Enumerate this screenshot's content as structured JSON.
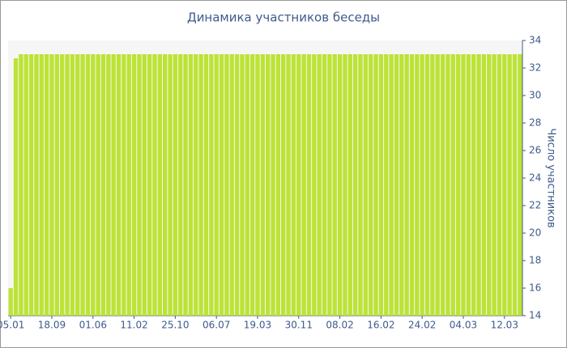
{
  "chart_data": {
    "type": "bar",
    "title": "Динамика участников беседы",
    "y_label": "Число участников",
    "categories": [
      "05.01",
      null,
      null,
      null,
      null,
      null,
      null,
      null,
      "18.09",
      null,
      null,
      null,
      null,
      null,
      null,
      null,
      "01.06",
      null,
      null,
      null,
      null,
      null,
      null,
      null,
      "11.02",
      null,
      null,
      null,
      null,
      null,
      null,
      null,
      "25.10",
      null,
      null,
      null,
      null,
      null,
      null,
      null,
      "06.07",
      null,
      null,
      null,
      null,
      null,
      null,
      null,
      "19.03",
      null,
      null,
      null,
      null,
      null,
      null,
      null,
      "30.11",
      null,
      null,
      null,
      null,
      null,
      null,
      null,
      "08.02",
      null,
      null,
      null,
      null,
      null,
      null,
      null,
      "16.02",
      null,
      null,
      null,
      null,
      null,
      null,
      null,
      "24.02",
      null,
      null,
      null,
      null,
      null,
      null,
      null,
      "04.03",
      null,
      null,
      null,
      null,
      null,
      null,
      null,
      "12.03",
      null,
      null,
      null
    ],
    "values": [
      16,
      32.7,
      33,
      33,
      33,
      33,
      33,
      33,
      33,
      33,
      33,
      33,
      33,
      33,
      33,
      33,
      33,
      33,
      33,
      33,
      33,
      33,
      33,
      33,
      33,
      33,
      33,
      33,
      33,
      33,
      33,
      33,
      33,
      33,
      33,
      33,
      33,
      33,
      33,
      33,
      33,
      33,
      33,
      33,
      33,
      33,
      33,
      33,
      33,
      33,
      33,
      33,
      33,
      33,
      33,
      33,
      33,
      33,
      33,
      33,
      33,
      33,
      33,
      33,
      33,
      33,
      33,
      33,
      33,
      33,
      33,
      33,
      33,
      33,
      33,
      33,
      33,
      33,
      33,
      33,
      33,
      33,
      33,
      33,
      33,
      33,
      33,
      33,
      33,
      33,
      33,
      33,
      33,
      33,
      33,
      33,
      33,
      33,
      33,
      33
    ],
    "color": "#bde336",
    "ylim": [
      14,
      34
    ],
    "yticks": [
      14,
      16,
      18,
      20,
      22,
      24,
      26,
      28,
      30,
      32,
      34
    ],
    "y_axis_side": "right"
  }
}
